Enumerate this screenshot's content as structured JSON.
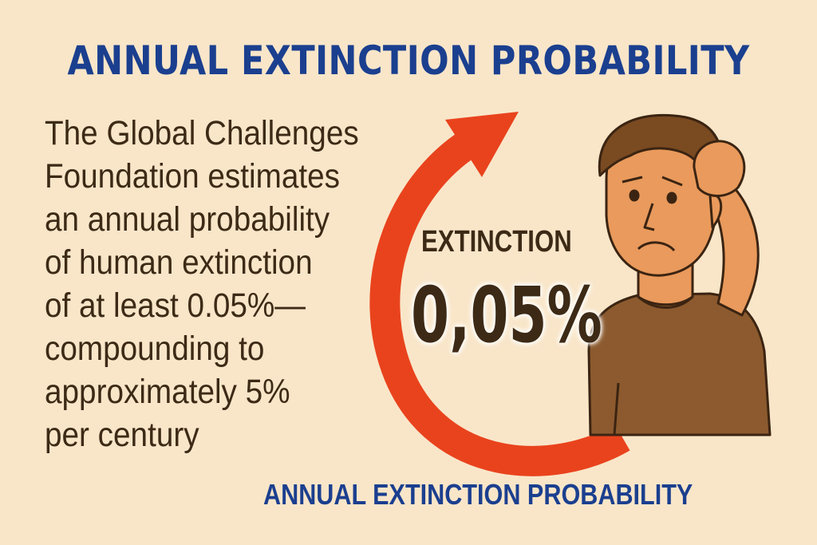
{
  "title": "ANNUAL EXTINCTION PROBABILITY",
  "body_text": "The Global Challenges\nFoundation estimates\nan annual probability\nof human extinction\nof at least 0.05%—\ncompounding to\napproximately 5%\nper century",
  "stat": {
    "label": "EXTINCTION",
    "value": "0,05%"
  },
  "footer": "ANNUAL EXTINCTION PROBABILITY",
  "colors": {
    "background": "#f9e6c9",
    "title_blue": "#1b3f8f",
    "text_brown": "#3d2a16",
    "arrow_red": "#e9431d",
    "skin": "#e99a5c",
    "hair": "#7a4a21",
    "shirt": "#8c5a2e"
  },
  "illustration": {
    "icon": "worried-man-illustration",
    "arrow": "circular-arrow-icon"
  }
}
